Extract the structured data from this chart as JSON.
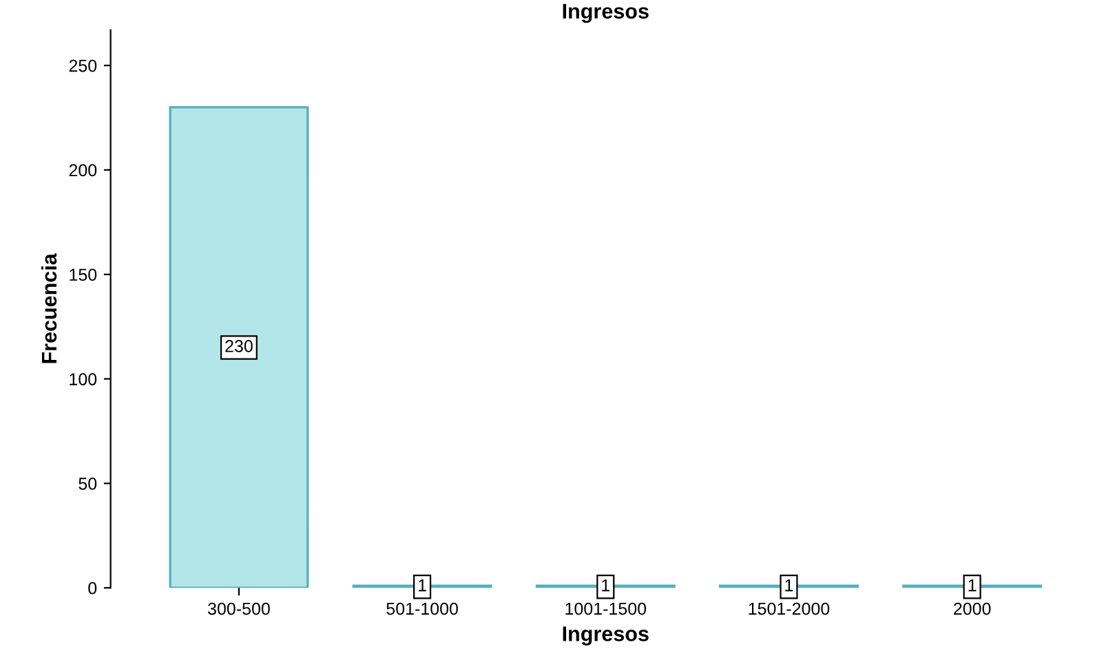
{
  "chart_data": {
    "type": "bar",
    "title": "Ingresos",
    "xlabel": "Ingresos",
    "ylabel": "Frecuencia",
    "categories": [
      "300-500",
      "501-1000",
      "1001-1500",
      "1501-2000",
      "2000"
    ],
    "values": [
      230,
      1,
      1,
      1,
      1
    ],
    "color": "#b3e6e8",
    "ylim": [
      0,
      267
    ],
    "yticks": [
      0,
      50,
      100,
      150,
      200,
      250
    ],
    "grid": false,
    "data_labels": true
  }
}
